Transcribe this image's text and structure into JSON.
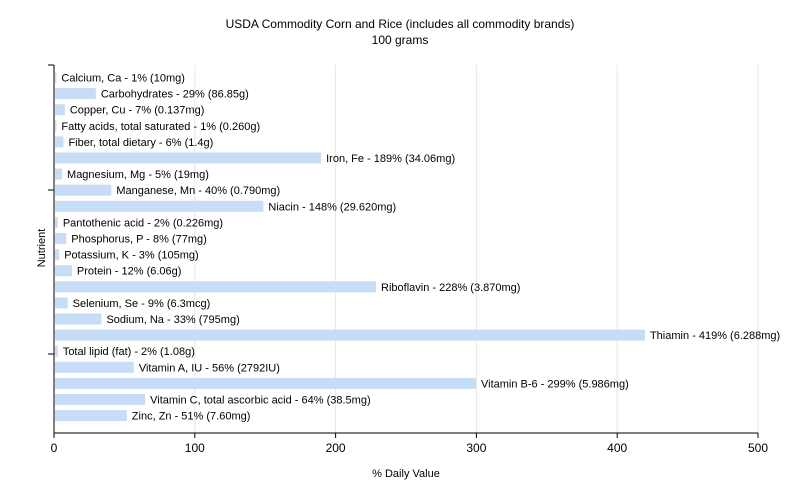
{
  "chart_data": {
    "type": "bar",
    "orientation": "horizontal",
    "title": "USDA Commodity Corn and Rice (includes all commodity brands)",
    "subtitle": "100 grams",
    "xlabel": "% Daily Value",
    "ylabel": "Nutrient",
    "xlim": [
      0,
      500
    ],
    "xticks": [
      0,
      100,
      200,
      300,
      400,
      500
    ],
    "grid": true,
    "bar_color": "#c6dcf7",
    "categories": [
      "Calcium, Ca",
      "Carbohydrates",
      "Copper, Cu",
      "Fatty acids, total saturated",
      "Fiber, total dietary",
      "Iron, Fe",
      "Magnesium, Mg",
      "Manganese, Mn",
      "Niacin",
      "Pantothenic acid",
      "Phosphorus, P",
      "Potassium, K",
      "Protein",
      "Riboflavin",
      "Selenium, Se",
      "Sodium, Na",
      "Thiamin",
      "Total lipid (fat)",
      "Vitamin A, IU",
      "Vitamin B-6",
      "Vitamin C, total ascorbic acid",
      "Zinc, Zn"
    ],
    "values": [
      1,
      29,
      7,
      1,
      6,
      189,
      5,
      40,
      148,
      2,
      8,
      3,
      12,
      228,
      9,
      33,
      419,
      2,
      56,
      299,
      64,
      51
    ],
    "labels": [
      "Calcium, Ca - 1% (10mg)",
      "Carbohydrates - 29% (86.85g)",
      "Copper, Cu - 7% (0.137mg)",
      "Fatty acids, total saturated - 1% (0.260g)",
      "Fiber, total dietary - 6% (1.4g)",
      "Iron, Fe - 189% (34.06mg)",
      "Magnesium, Mg - 5% (19mg)",
      "Manganese, Mn - 40% (0.790mg)",
      "Niacin - 148% (29.620mg)",
      "Pantothenic acid - 2% (0.226mg)",
      "Phosphorus, P - 8% (77mg)",
      "Potassium, K - 3% (105mg)",
      "Protein - 12% (6.06g)",
      "Riboflavin - 228% (3.870mg)",
      "Selenium, Se - 9% (6.3mcg)",
      "Sodium, Na - 33% (795mg)",
      "Thiamin - 419% (6.288mg)",
      "Total lipid (fat) - 2% (1.08g)",
      "Vitamin A, IU - 56% (2792IU)",
      "Vitamin B-6 - 299% (5.986mg)",
      "Vitamin C, total ascorbic acid - 64% (38.5mg)",
      "Zinc, Zn - 51% (7.60mg)"
    ]
  }
}
